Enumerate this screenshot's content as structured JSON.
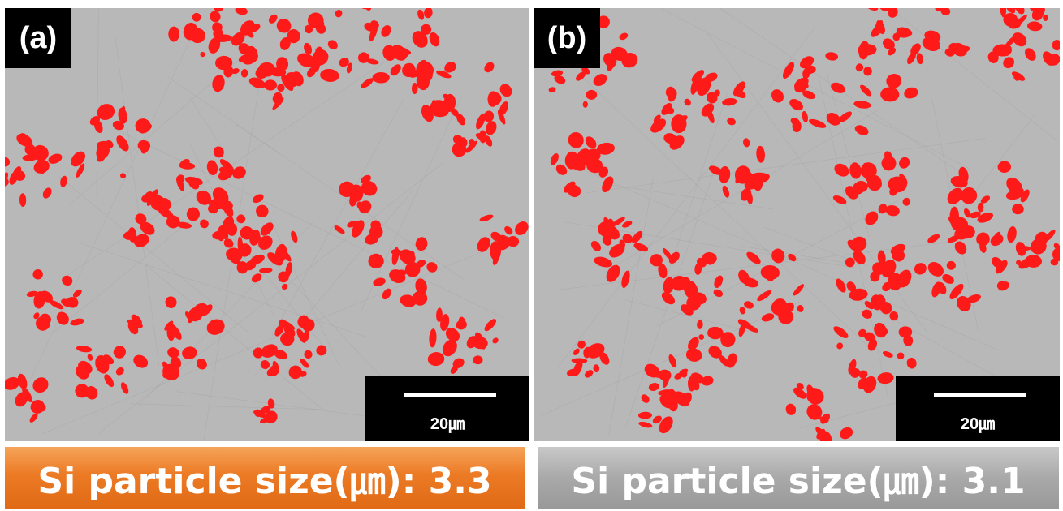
{
  "panels": [
    {
      "label": "(a)",
      "scale_bar": "20㎛",
      "caption": "Si particle size(㎛): 3.3"
    },
    {
      "label": "(b)",
      "scale_bar": "20㎛",
      "caption": "Si particle size(㎛): 3.1"
    }
  ],
  "colors": {
    "particle": "#ff1a1a",
    "matrix": "#b8b8b8",
    "caption_a": "#ec7a24",
    "caption_b": "#a9a9a9"
  }
}
